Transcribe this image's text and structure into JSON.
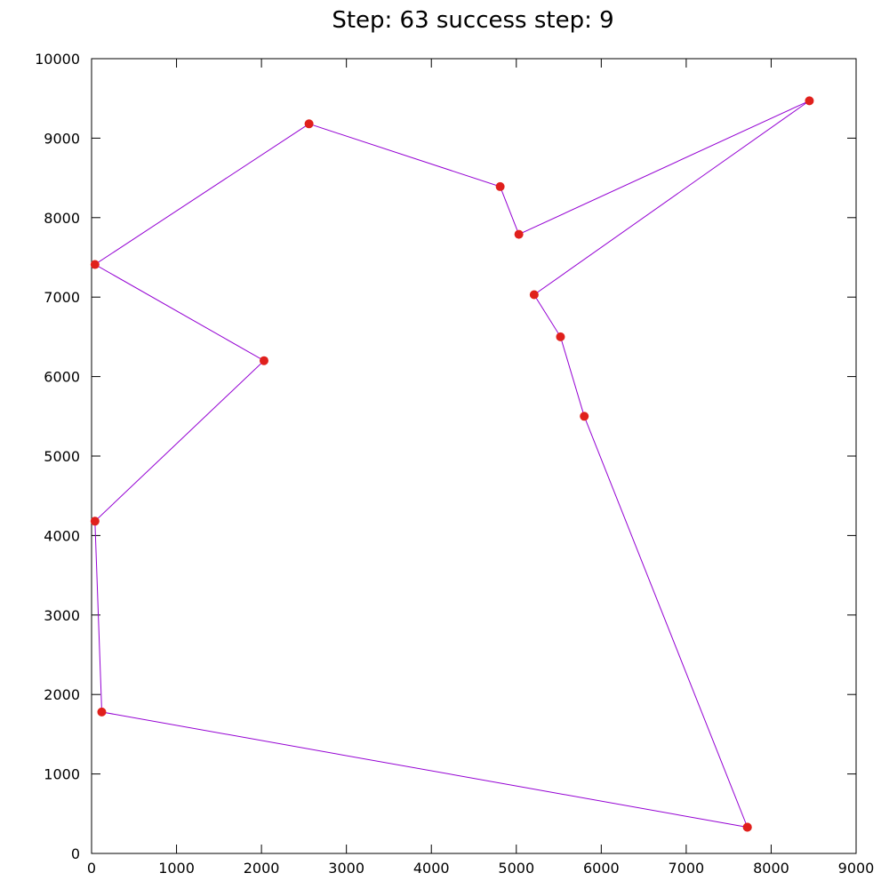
{
  "chart_data": {
    "type": "line",
    "title": "Step: 63 success step: 9",
    "xlabel": "",
    "ylabel": "",
    "xlim": [
      0,
      9000
    ],
    "ylim": [
      0,
      10000
    ],
    "x_ticks": [
      0,
      1000,
      2000,
      3000,
      4000,
      5000,
      6000,
      7000,
      8000,
      9000
    ],
    "y_ticks": [
      0,
      1000,
      2000,
      3000,
      4000,
      5000,
      6000,
      7000,
      8000,
      9000,
      10000
    ],
    "x_tick_labels": [
      "0",
      "1000",
      "2000",
      "3000",
      "4000",
      "5000",
      "6000",
      "7000",
      "8000",
      "9000"
    ],
    "y_tick_labels": [
      "0",
      "1000",
      "2000",
      "3000",
      "4000",
      "5000",
      "6000",
      "7000",
      "8000",
      "9000",
      "10000"
    ],
    "grid": false,
    "line_color": "#9400d3",
    "point_color": "#e0201c",
    "series": [
      {
        "x": [
          7720,
          120,
          40,
          2030,
          40,
          2560,
          4810,
          5030,
          8450,
          5210,
          5520,
          5800,
          7720
        ],
        "y": [
          330,
          1780,
          4180,
          6200,
          7410,
          9180,
          8390,
          7790,
          9470,
          7030,
          6500,
          5500,
          330
        ]
      }
    ]
  }
}
